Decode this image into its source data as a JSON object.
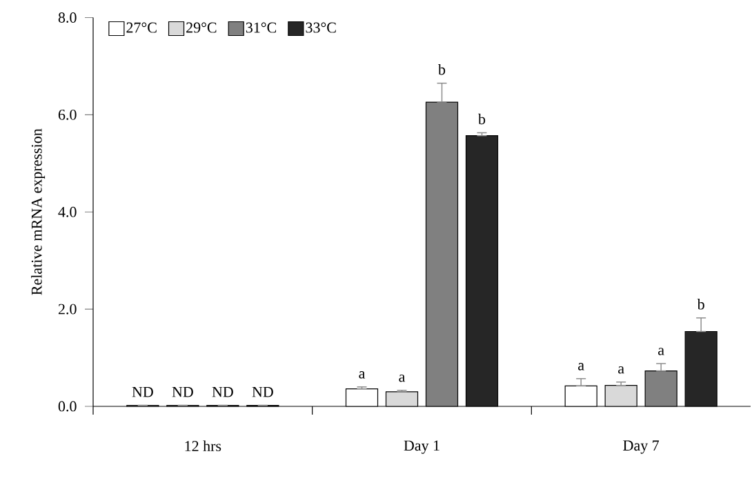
{
  "chart_data": {
    "type": "bar",
    "ylabel": "Relative mRNA expression",
    "categories": [
      "12 hrs",
      "Day 1",
      "Day 7"
    ],
    "ylim": [
      0,
      8
    ],
    "yticks": [
      {
        "value": 0,
        "label": "0.0"
      },
      {
        "value": 2,
        "label": "2.0"
      },
      {
        "value": 4,
        "label": "4.0"
      },
      {
        "value": 6,
        "label": "6.0"
      },
      {
        "value": 8,
        "label": "8.0"
      }
    ],
    "legend": "top left",
    "series": [
      {
        "name": "27°C",
        "color": "#ffffff",
        "values": [
          0.02,
          0.36,
          0.42
        ],
        "errors": [
          null,
          [
            0.36,
            0.4
          ],
          [
            0.42,
            0.57
          ]
        ],
        "value_labels": [
          "ND",
          "a",
          "a"
        ]
      },
      {
        "name": "29°C",
        "color": "#d9d9d9",
        "values": [
          0.02,
          0.3,
          0.43
        ],
        "errors": [
          null,
          [
            0.3,
            0.33
          ],
          [
            0.43,
            0.5
          ]
        ],
        "value_labels": [
          "ND",
          "a",
          "a"
        ]
      },
      {
        "name": "31°C",
        "color": "#808080",
        "values": [
          0.02,
          6.26,
          0.73
        ],
        "errors": [
          null,
          [
            6.26,
            6.65
          ],
          [
            0.73,
            0.88
          ]
        ],
        "value_labels": [
          "ND",
          "b",
          "a"
        ]
      },
      {
        "name": "33°C",
        "color": "#262626",
        "values": [
          0.02,
          5.57,
          1.54
        ],
        "errors": [
          null,
          [
            5.57,
            5.63
          ],
          [
            1.54,
            1.82
          ]
        ],
        "value_labels": [
          "ND",
          "b",
          "b"
        ]
      }
    ]
  }
}
